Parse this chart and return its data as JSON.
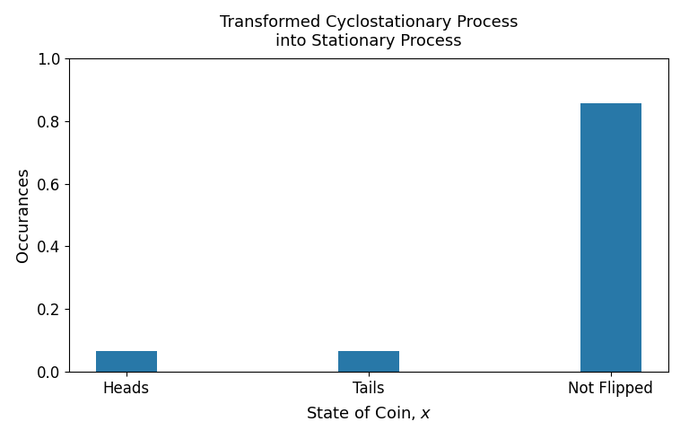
{
  "title": "Transformed Cyclostationary Process\ninto Stationary Process",
  "xlabel": "State of Coin, x",
  "ylabel": "Occurances",
  "categories": [
    "Heads",
    "Tails",
    "Not Flipped"
  ],
  "values": [
    0.065,
    0.065,
    0.857
  ],
  "bar_color": "#2878a8",
  "ylim": [
    0.0,
    1.0
  ],
  "title_fontsize": 13,
  "label_fontsize": 13,
  "tick_fontsize": 12,
  "bar_width": 0.25
}
